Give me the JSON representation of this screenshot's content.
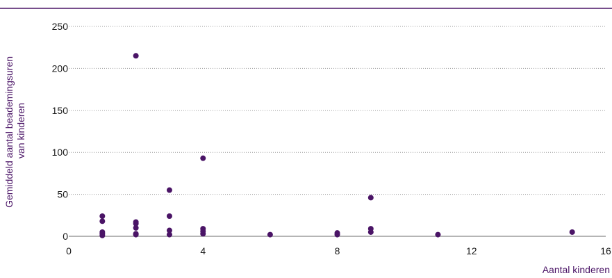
{
  "colors": {
    "accent": "#4a1466",
    "grid": "#9a9a9a",
    "text": "#4a1466"
  },
  "chart_data": {
    "type": "scatter",
    "title": "",
    "xlabel": "Aantal kinderen",
    "ylabel": [
      "Gemiddeld aantal beademingsuren",
      "van kinderen"
    ],
    "xlim": [
      0,
      16
    ],
    "ylim": [
      0,
      250
    ],
    "xticks": [
      0,
      4,
      8,
      12,
      16
    ],
    "yticks": [
      0,
      50,
      100,
      150,
      200,
      250
    ],
    "xtick_labels": [
      "0",
      "4",
      "8",
      "12",
      "16"
    ],
    "ytick_labels": [
      "0",
      "50",
      "100",
      "150",
      "200",
      "250"
    ],
    "grid": "horizontal dotted",
    "legend": "none",
    "points": [
      {
        "x": 1,
        "y": 24
      },
      {
        "x": 1,
        "y": 18
      },
      {
        "x": 1,
        "y": 5
      },
      {
        "x": 1,
        "y": 3
      },
      {
        "x": 1,
        "y": 1
      },
      {
        "x": 2,
        "y": 215
      },
      {
        "x": 2,
        "y": 17
      },
      {
        "x": 2,
        "y": 15
      },
      {
        "x": 2,
        "y": 10
      },
      {
        "x": 2,
        "y": 3
      },
      {
        "x": 2,
        "y": 2
      },
      {
        "x": 3,
        "y": 55
      },
      {
        "x": 3,
        "y": 24
      },
      {
        "x": 3,
        "y": 7
      },
      {
        "x": 3,
        "y": 2
      },
      {
        "x": 4,
        "y": 93
      },
      {
        "x": 4,
        "y": 9
      },
      {
        "x": 4,
        "y": 6
      },
      {
        "x": 4,
        "y": 3
      },
      {
        "x": 6,
        "y": 2
      },
      {
        "x": 8,
        "y": 4
      },
      {
        "x": 8,
        "y": 2
      },
      {
        "x": 9,
        "y": 46
      },
      {
        "x": 9,
        "y": 9
      },
      {
        "x": 9,
        "y": 5
      },
      {
        "x": 11,
        "y": 2
      },
      {
        "x": 15,
        "y": 5
      }
    ]
  }
}
